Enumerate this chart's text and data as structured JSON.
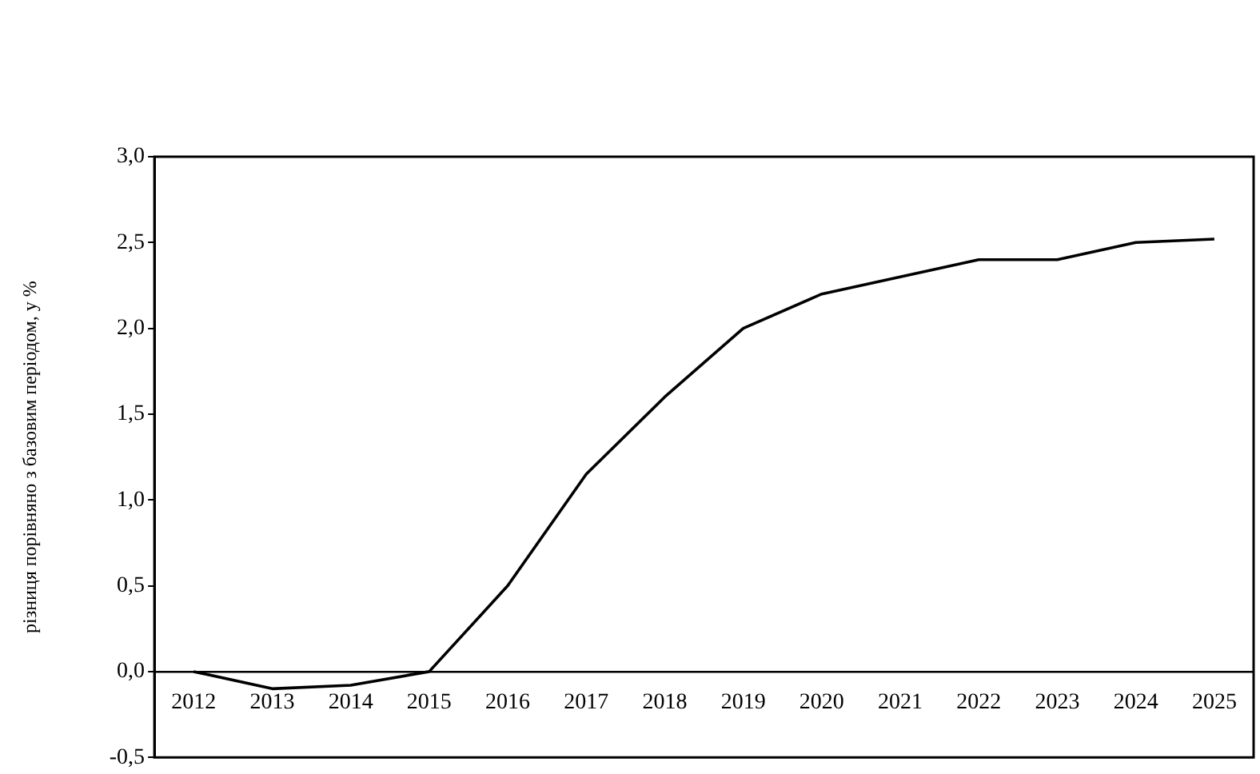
{
  "chart_data": {
    "type": "line",
    "ylabel": "різниця порівняно з базовим періодом, у %",
    "categories": [
      "2012",
      "2013",
      "2014",
      "2015",
      "2016",
      "2017",
      "2018",
      "2019",
      "2020",
      "2021",
      "2022",
      "2023",
      "2024",
      "2025"
    ],
    "series": [
      {
        "color": "#000000",
        "values": [
          0,
          -0.1,
          -0.08,
          0,
          0.5,
          1.15,
          1.6,
          2.0,
          2.2,
          2.3,
          2.4,
          2.4,
          2.5,
          2.52
        ]
      }
    ],
    "ylim": [
      -0.5,
      3.0
    ],
    "yticks": [
      {
        "value": -0.5,
        "label": "-0,5"
      },
      {
        "value": 0,
        "label": "0,0"
      },
      {
        "value": 0.5,
        "label": "0,5"
      },
      {
        "value": 1,
        "label": "1,0"
      },
      {
        "value": 1.5,
        "label": "1,5"
      },
      {
        "value": 2,
        "label": "2,0"
      },
      {
        "value": 2.5,
        "label": "2,5"
      },
      {
        "value": 3,
        "label": "3,0"
      }
    ],
    "grid": false,
    "legend": false,
    "marker": "none",
    "line_style": "solid"
  }
}
